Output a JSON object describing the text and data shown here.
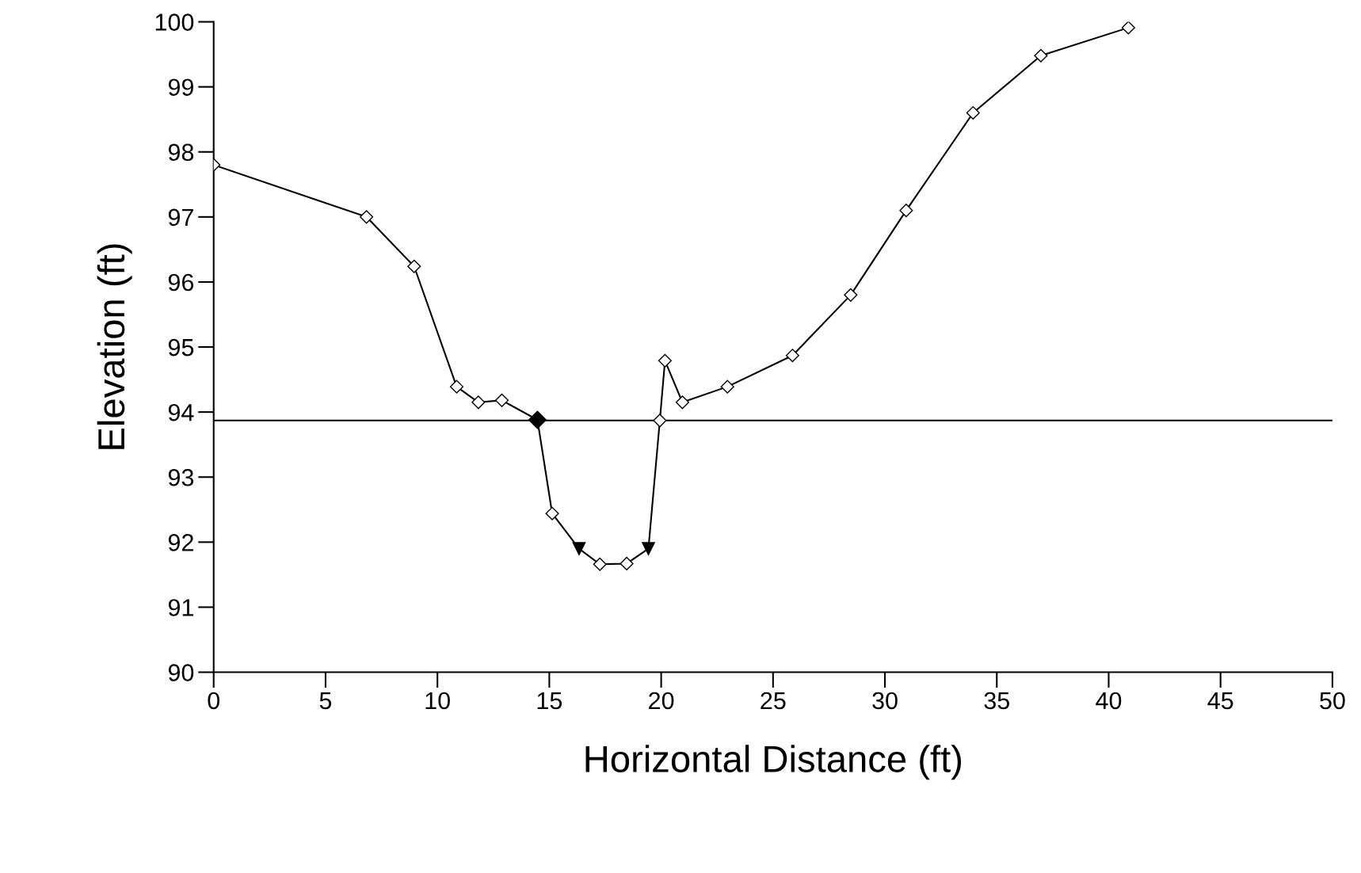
{
  "chart_data": {
    "type": "line",
    "xlabel": "Horizontal Distance (ft)",
    "ylabel": "Elevation (ft)",
    "xlim": [
      0,
      50
    ],
    "xticks": [
      0,
      5,
      10,
      15,
      20,
      25,
      30,
      35,
      40,
      45,
      50
    ],
    "ylim": [
      90,
      100
    ],
    "yticks": [
      90,
      91,
      92,
      93,
      94,
      95,
      96,
      97,
      98,
      99,
      100
    ],
    "grid": false,
    "legend": false,
    "ref_lines": [
      {
        "axis": "y",
        "value": 93.87,
        "color": "#000000",
        "line_style": "solid"
      }
    ],
    "series": [
      {
        "color": "#000000",
        "marker": "diamond",
        "line_style": "solid",
        "x": [
          0,
          6.83,
          8.96,
          10.86,
          11.83,
          12.88,
          14.47,
          15.13,
          16.33,
          17.26,
          18.46,
          19.43,
          19.94,
          20.17,
          20.95,
          22.96,
          25.87,
          28.47,
          30.95,
          33.94,
          36.97,
          40.88
        ],
        "values": [
          97.8,
          97.0,
          96.24,
          94.39,
          94.15,
          94.18,
          93.88,
          92.44,
          91.9,
          91.66,
          91.67,
          91.9,
          93.87,
          94.79,
          94.15,
          94.39,
          94.87,
          95.8,
          97.1,
          98.6,
          99.48,
          99.91
        ]
      },
      {
        "type": "scatter",
        "color": "#000000",
        "marker": "diamond",
        "x": [
          14.47
        ],
        "values": [
          93.88
        ]
      },
      {
        "type": "scatter",
        "color": "#000000",
        "marker": "triangle",
        "x": [
          16.33,
          19.43
        ],
        "values": [
          91.9,
          91.9
        ]
      }
    ]
  }
}
